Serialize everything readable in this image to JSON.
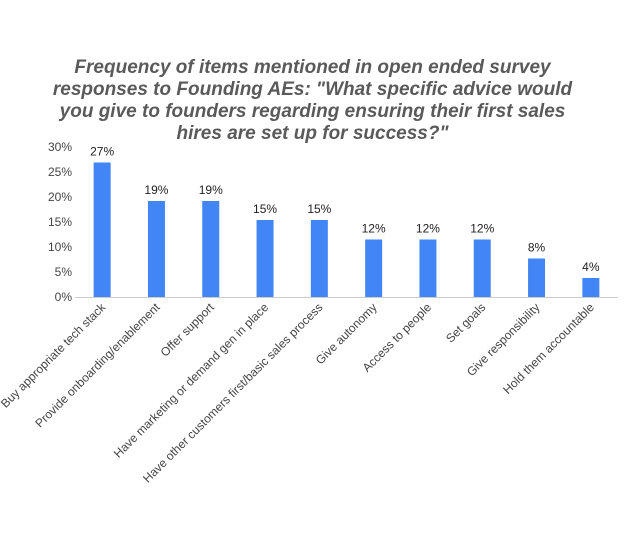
{
  "chart_data": {
    "type": "bar",
    "title": "Frequency of items mentioned in open ended survey responses to Founding AEs: \"What specific advice would you give to founders regarding ensuring their first sales hires are set up for success?\"",
    "xlabel": "",
    "ylabel": "",
    "ylim": [
      0,
      30
    ],
    "yticks": [
      "0%",
      "5%",
      "10%",
      "15%",
      "20%",
      "25%",
      "30%"
    ],
    "grid": false,
    "legend": "none",
    "bar_color": "#4285f4",
    "categories": [
      "Buy appropriate tech stack",
      "Provide onboarding/enablement",
      "Offer support",
      "Have marketing or demand gen in place",
      "Have other customers first/basic sales process",
      "Give autonomy",
      "Access to people",
      "Set goals",
      "Give responsibility",
      "Hold them accountable"
    ],
    "values": [
      26.9,
      19.2,
      19.2,
      15.4,
      15.4,
      11.5,
      11.5,
      11.5,
      7.7,
      3.8
    ],
    "data_labels": [
      "27%",
      "19%",
      "19%",
      "15%",
      "15%",
      "12%",
      "12%",
      "12%",
      "8%",
      "4%"
    ]
  }
}
